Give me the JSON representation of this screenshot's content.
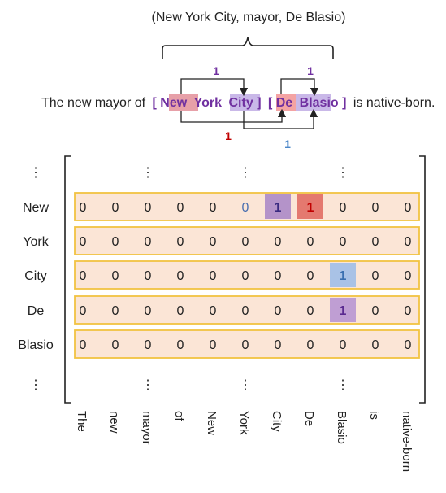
{
  "triple": "(New York City, mayor, De Blasio)",
  "sentence": {
    "prefix": "The new mayor of",
    "open_bracket_1": "[",
    "subject_tokens": [
      "New",
      "York",
      "City"
    ],
    "close_bracket_1": "]",
    "open_bracket_2": "[",
    "object_tokens": [
      "De",
      "Blasio"
    ],
    "close_bracket_2": "]",
    "suffix": "is native-born."
  },
  "arc_labels": [
    {
      "value": "1",
      "color": "#7030a0"
    },
    {
      "value": "1",
      "color": "#7030a0"
    },
    {
      "value": "1",
      "color": "#c00000"
    },
    {
      "value": "1",
      "color": "#4a86c8"
    }
  ],
  "matrix": {
    "ellipsis": "⋮",
    "row_labels": [
      "New",
      "York",
      "City",
      "De",
      "Blasio"
    ],
    "column_labels": [
      "The",
      "new",
      "mayor",
      "of",
      "New",
      "York",
      "City",
      "De",
      "Blasio",
      "is",
      "native-born"
    ],
    "column_ellipsis_indices": [
      2,
      5,
      8
    ],
    "rows": [
      [
        "0",
        "0",
        "0",
        "0",
        "0",
        "0",
        "1",
        "1",
        "0",
        "0",
        "0"
      ],
      [
        "0",
        "0",
        "0",
        "0",
        "0",
        "0",
        "0",
        "0",
        "0",
        "0",
        "0"
      ],
      [
        "0",
        "0",
        "0",
        "0",
        "0",
        "0",
        "0",
        "0",
        "1",
        "0",
        "0"
      ],
      [
        "0",
        "0",
        "0",
        "0",
        "0",
        "0",
        "0",
        "0",
        "1",
        "0",
        "0"
      ],
      [
        "0",
        "0",
        "0",
        "0",
        "0",
        "0",
        "0",
        "0",
        "0",
        "0",
        "0"
      ]
    ],
    "cell_text_colors": [
      [
        null,
        null,
        null,
        null,
        null,
        "#4a6fb0",
        "#3a2a80",
        "#c00000",
        null,
        null,
        null
      ],
      [
        null,
        null,
        null,
        null,
        null,
        null,
        null,
        null,
        null,
        null,
        null
      ],
      [
        null,
        null,
        null,
        null,
        null,
        null,
        null,
        null,
        "#3a6fb0",
        null,
        null
      ],
      [
        null,
        null,
        null,
        null,
        null,
        null,
        null,
        null,
        "#5a2a90",
        null,
        null
      ],
      [
        null,
        null,
        null,
        null,
        null,
        null,
        null,
        null,
        null,
        null,
        null
      ]
    ],
    "highlights": [
      {
        "row": 0,
        "col": 6,
        "color": "#b493c9"
      },
      {
        "row": 0,
        "col": 7,
        "color": "#e4796f"
      },
      {
        "row": 2,
        "col": 8,
        "color": "#a9c2e6"
      },
      {
        "row": 3,
        "col": 8,
        "color": "#bf9ed3"
      }
    ]
  },
  "colors": {
    "row_fill": "#fbe5d6",
    "row_border": "#f2c341",
    "subject_highlight": "#e7a0a8",
    "subject_text": "#7030a0",
    "object_highlight": "#c9b8e8",
    "object_text": "#7030a0",
    "red_highlight": "#f4a3a3"
  }
}
